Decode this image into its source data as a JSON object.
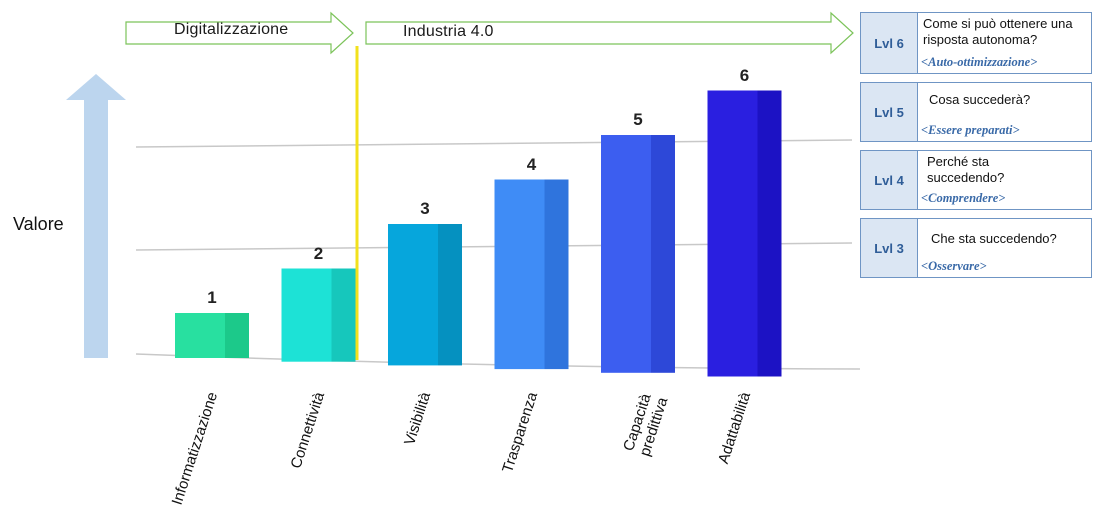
{
  "phases": [
    {
      "label": "Digitalizzazione"
    },
    {
      "label": "Industria 4.0"
    }
  ],
  "y_axis_label": "Valore",
  "chart_data": {
    "type": "bar",
    "categories": [
      "Informatizzazione",
      "Connettività",
      "Visibilità",
      "Trasparenza",
      "Capacità predittiva",
      "Adattabilità"
    ],
    "category_lines": [
      [
        "Informatizzazione"
      ],
      [
        "Connettività"
      ],
      [
        "Visibilità"
      ],
      [
        "Trasparenza"
      ],
      [
        "Capacità",
        "predittiva"
      ],
      [
        "Adattabilità"
      ]
    ],
    "values": [
      1,
      2,
      3,
      4,
      5,
      6
    ],
    "data_labels": [
      "1",
      "2",
      "3",
      "4",
      "5",
      "6"
    ],
    "colors": [
      "#28e0a0",
      "#1de2d6",
      "#06a6dc",
      "#3f8cf6",
      "#3c5ef0",
      "#2a1fe0"
    ],
    "side_colors": [
      "#1cc98a",
      "#16c7bc",
      "#0591c0",
      "#2f74dd",
      "#2d48d8",
      "#1c12c4"
    ],
    "title": "",
    "xlabel": "",
    "ylabel": "Valore"
  },
  "levels": [
    {
      "tag": "Lvl 6",
      "question": "Come si può ottenere una risposta autonoma?",
      "keyword": "<Auto-ottimizzazione>"
    },
    {
      "tag": "Lvl 5",
      "question": "Cosa succederà?",
      "keyword": "<Essere preparati>"
    },
    {
      "tag": "Lvl 4",
      "question": "Perché sta succedendo?",
      "keyword": "<Comprendere>"
    },
    {
      "tag": "Lvl 3",
      "question": "Che sta succedendo?",
      "keyword": "<Osservare>"
    }
  ],
  "colors": {
    "arrow_outline": "#7cc35a",
    "value_arrow": "#bcd5ee",
    "divider": "#f2e11c",
    "level_border": "#6f95c4",
    "level_tag_bg": "#dbe6f3",
    "keyword": "#3a6aa8"
  }
}
